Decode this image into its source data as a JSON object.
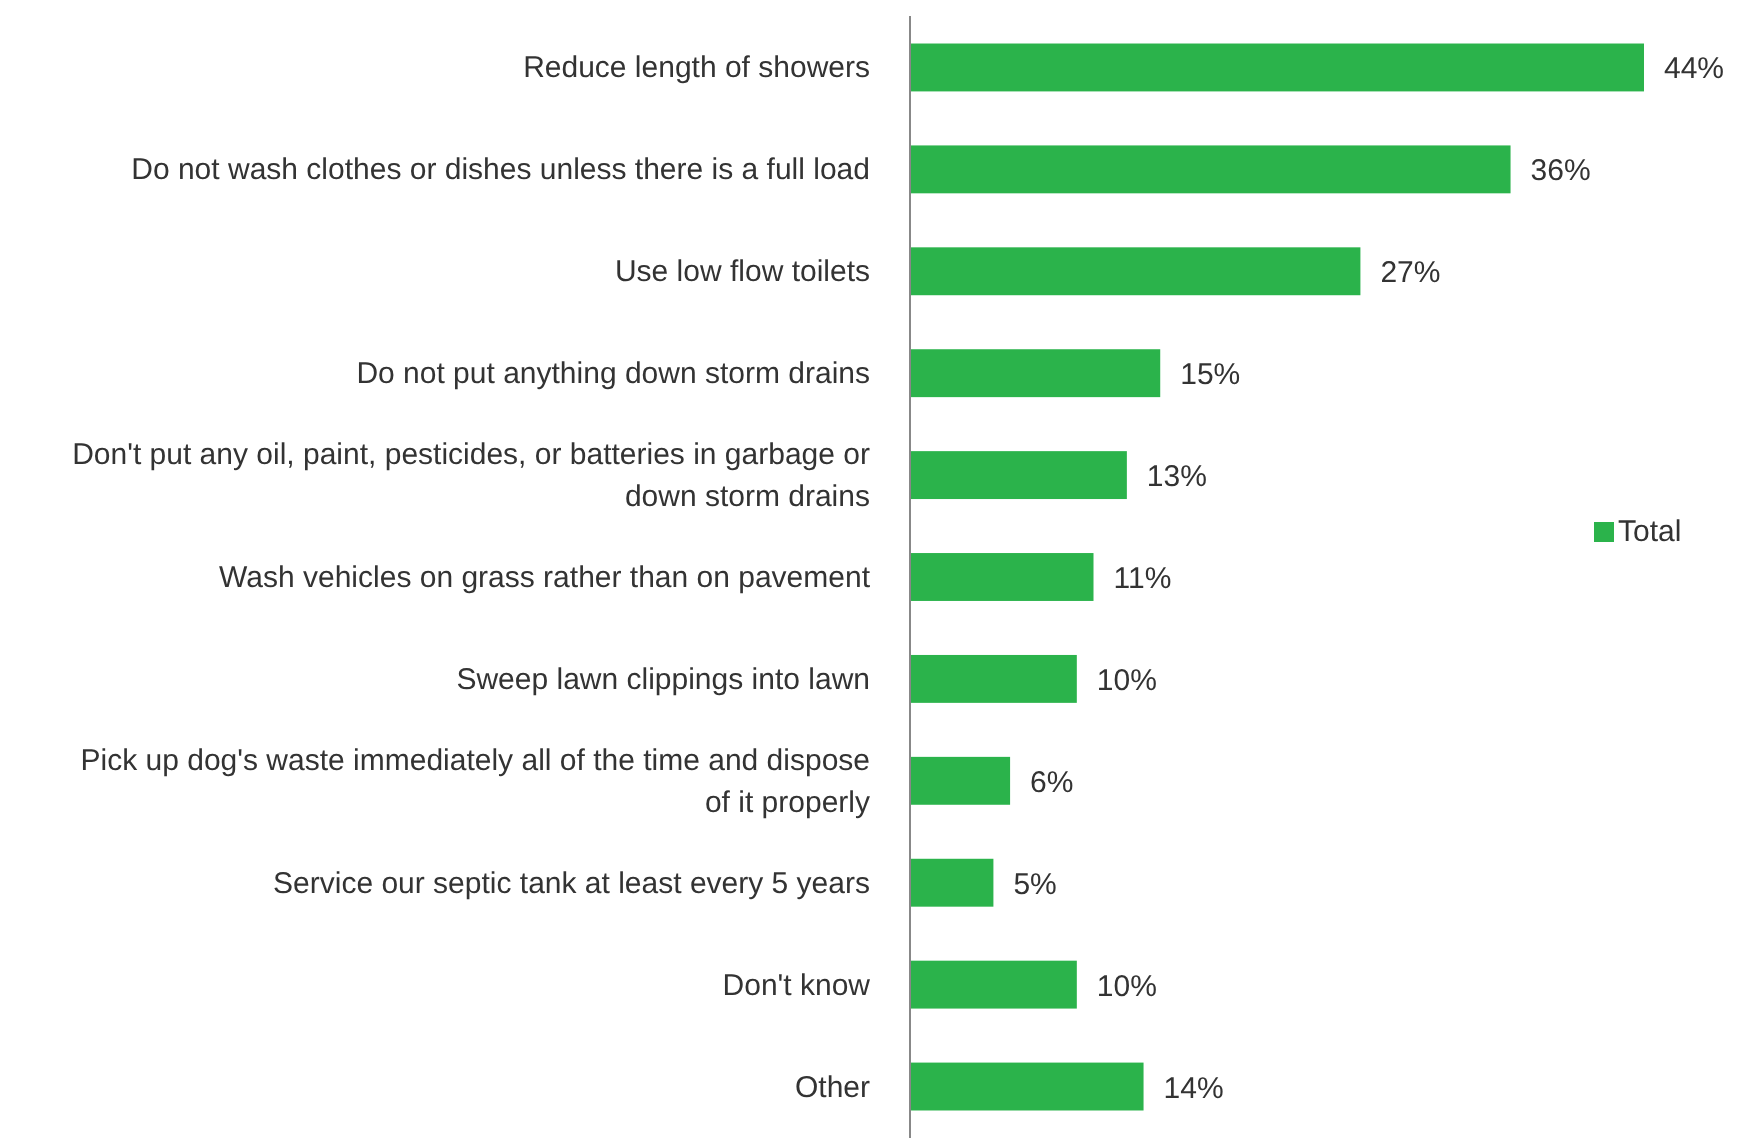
{
  "chart_data": {
    "type": "bar",
    "orientation": "horizontal",
    "categories": [
      "Reduce length of showers",
      "Do not wash clothes or dishes unless there is a full load",
      "Use low flow toilets",
      "Do not put anything down storm drains",
      "Don't put any oil, paint, pesticides, or batteries in garbage or down storm drains",
      "Wash vehicles on grass rather than on pavement",
      "Sweep lawn clippings into lawn",
      "Pick up dog's waste immediately all of the time and dispose of it properly",
      "Service our septic tank at least every 5 years",
      "Don't know",
      "Other"
    ],
    "series": [
      {
        "name": "Total",
        "color": "#2bb34b",
        "values": [
          44,
          36,
          27,
          15,
          13,
          11,
          10,
          6,
          5,
          10,
          14
        ],
        "value_labels": [
          "44%",
          "36%",
          "27%",
          "15%",
          "13%",
          "11%",
          "10%",
          "6%",
          "5%",
          "10%",
          "14%"
        ]
      }
    ],
    "legend": "right"
  }
}
